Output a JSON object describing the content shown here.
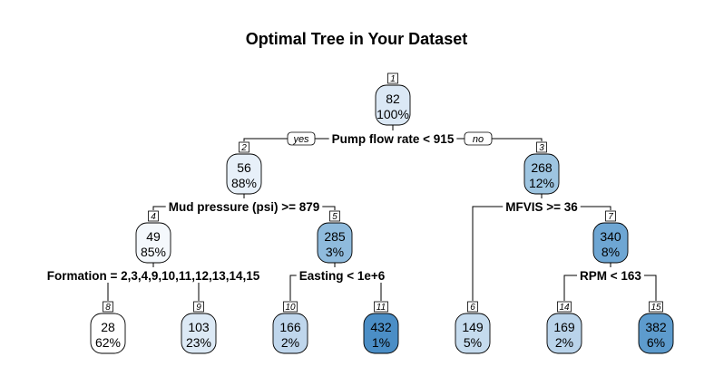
{
  "title": "Optimal Tree in Your Dataset",
  "labels": {
    "yes": "yes",
    "no": "no"
  },
  "nodes": [
    {
      "id": "1",
      "value": "82",
      "pct": "100%",
      "color": "#dbe8f5"
    },
    {
      "id": "2",
      "value": "56",
      "pct": "88%",
      "color": "#e7f0f9"
    },
    {
      "id": "3",
      "value": "268",
      "pct": "12%",
      "color": "#9ec5e1"
    },
    {
      "id": "4",
      "value": "49",
      "pct": "85%",
      "color": "#f4f8fc"
    },
    {
      "id": "5",
      "value": "285",
      "pct": "3%",
      "color": "#8fbbdd"
    },
    {
      "id": "6",
      "value": "149",
      "pct": "5%",
      "color": "#c5dbee"
    },
    {
      "id": "7",
      "value": "340",
      "pct": "8%",
      "color": "#6ea6d3"
    },
    {
      "id": "8",
      "value": "28",
      "pct": "62%",
      "color": "#ffffff"
    },
    {
      "id": "9",
      "value": "103",
      "pct": "23%",
      "color": "#dce9f5"
    },
    {
      "id": "10",
      "value": "166",
      "pct": "2%",
      "color": "#bfd6ec"
    },
    {
      "id": "11",
      "value": "432",
      "pct": "1%",
      "color": "#4b8ec6"
    },
    {
      "id": "14",
      "value": "169",
      "pct": "2%",
      "color": "#b9d3ea"
    },
    {
      "id": "15",
      "value": "382",
      "pct": "6%",
      "color": "#5d9bcd"
    }
  ],
  "splits": [
    {
      "node": "1",
      "label": "Pump flow rate < 915"
    },
    {
      "node": "2",
      "label": "Mud pressure (psi) >= 879"
    },
    {
      "node": "3",
      "label": "MFVIS >= 36"
    },
    {
      "node": "4",
      "label": "Formation = 2,3,4,9,10,11,12,13,14,15"
    },
    {
      "node": "5",
      "label": "Easting < 1e+6"
    },
    {
      "node": "7",
      "label": "RPM < 163"
    }
  ],
  "edges": [
    {
      "from": "1",
      "to": "2"
    },
    {
      "from": "1",
      "to": "3"
    },
    {
      "from": "2",
      "to": "4"
    },
    {
      "from": "2",
      "to": "5"
    },
    {
      "from": "3",
      "to": "6"
    },
    {
      "from": "3",
      "to": "7"
    },
    {
      "from": "4",
      "to": "8"
    },
    {
      "from": "4",
      "to": "9"
    },
    {
      "from": "5",
      "to": "10"
    },
    {
      "from": "5",
      "to": "11"
    },
    {
      "from": "7",
      "to": "14"
    },
    {
      "from": "7",
      "to": "15"
    }
  ]
}
